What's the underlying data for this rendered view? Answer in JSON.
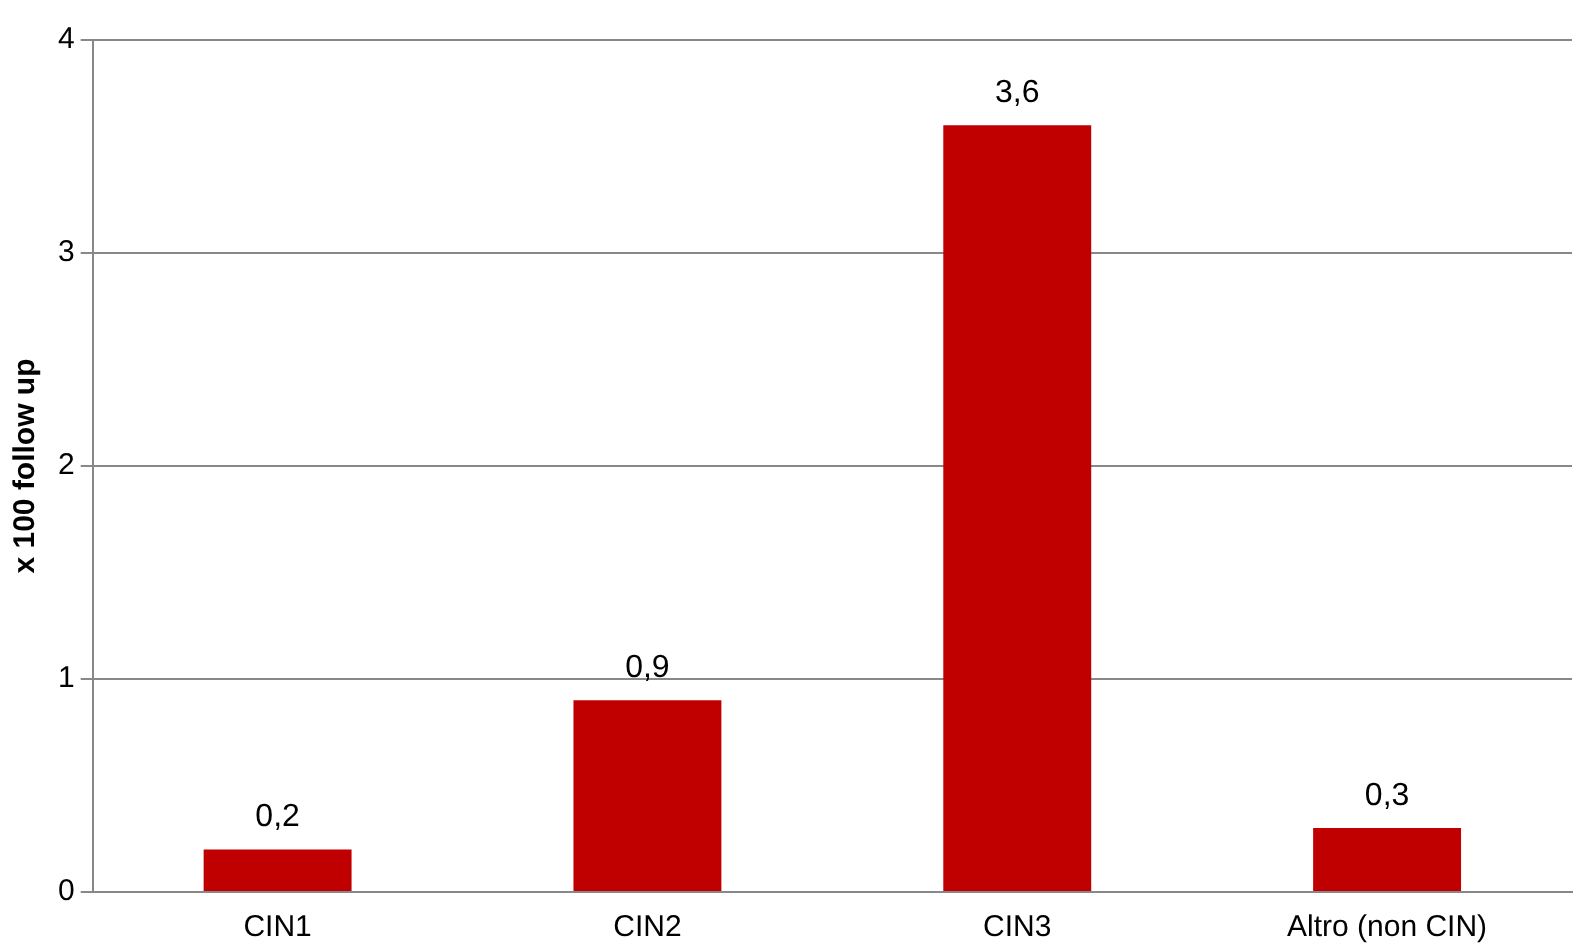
{
  "chart_data": {
    "type": "bar",
    "ylabel": "x 100 follow up",
    "categories": [
      "CIN1",
      "CIN2",
      "CIN3",
      "Altro (non CIN)"
    ],
    "values": [
      0.2,
      0.9,
      3.6,
      0.3
    ],
    "value_labels": [
      "0,2",
      "0,9",
      "3,6",
      "0,3"
    ],
    "color": "#c00000",
    "ylim": [
      0,
      4
    ],
    "yticks": [
      0,
      1,
      2,
      3,
      4
    ],
    "grid": "y",
    "legend": false
  }
}
